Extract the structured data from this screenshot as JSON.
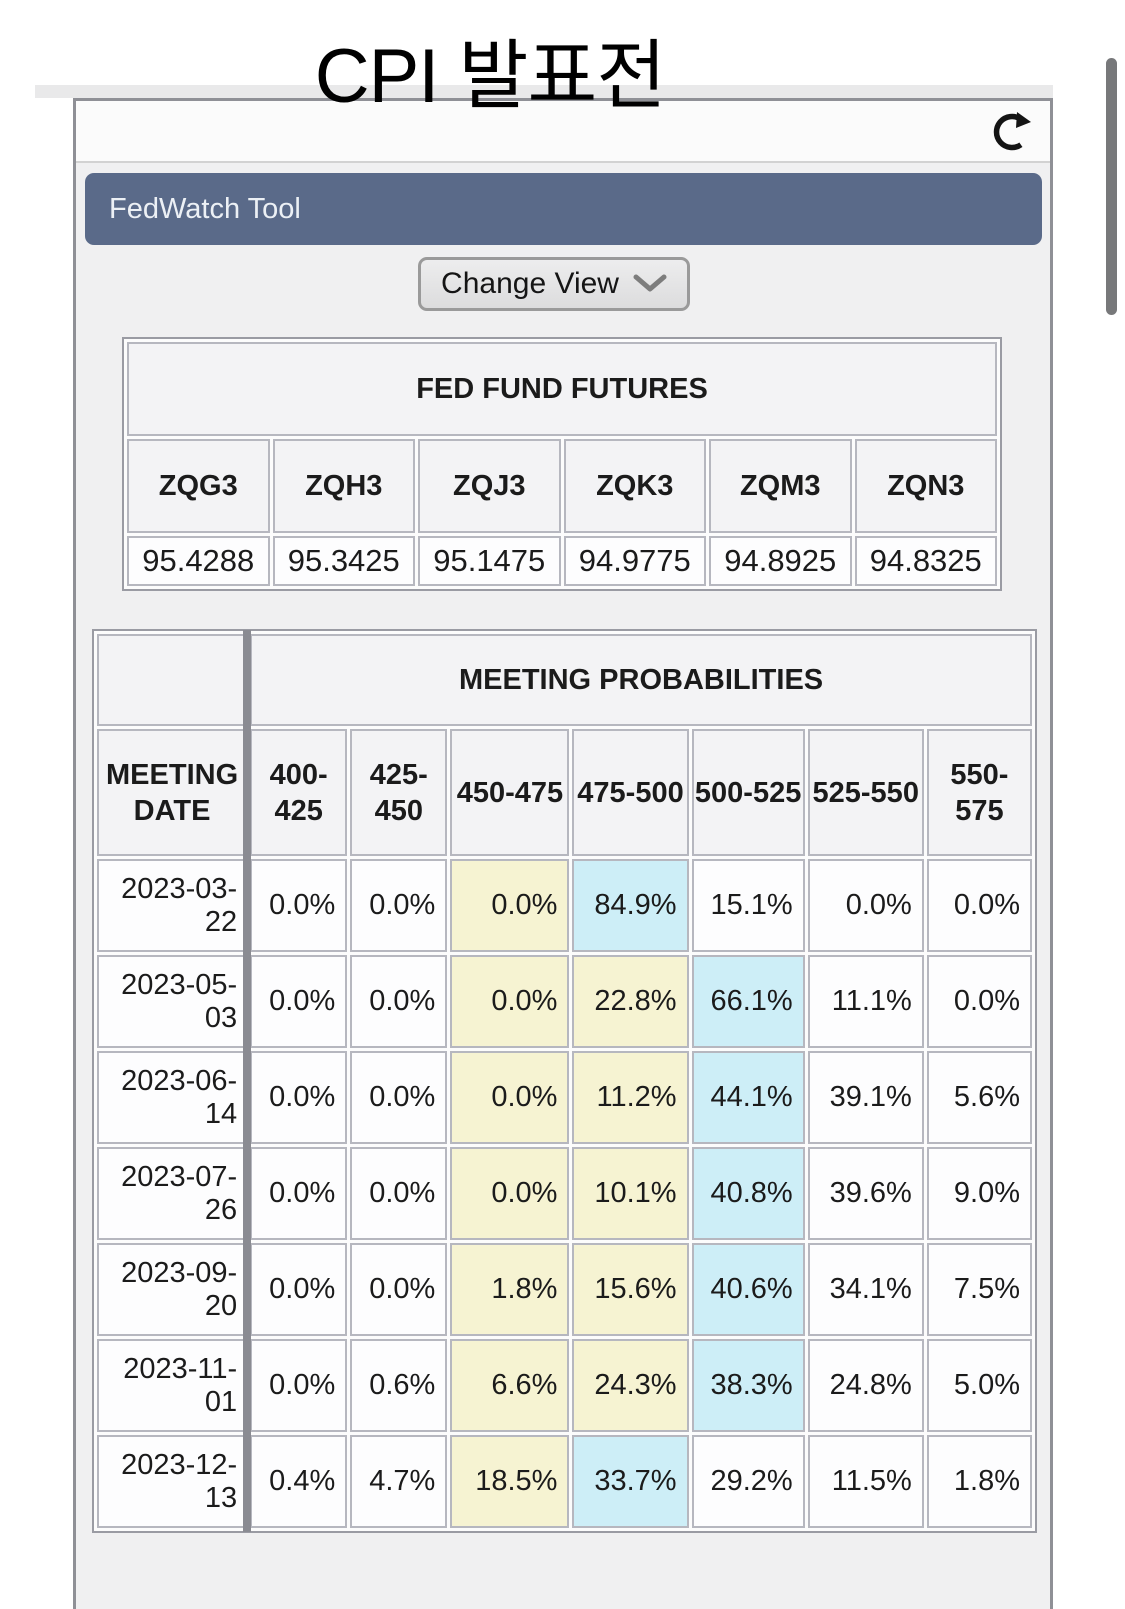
{
  "page": {
    "title": "CPI 발표전"
  },
  "widget": {
    "header_label": "FedWatch Tool",
    "change_view_label": "Change View"
  },
  "futures_table": {
    "title": "FED FUND FUTURES",
    "symbols": [
      "ZQG3",
      "ZQH3",
      "ZQJ3",
      "ZQK3",
      "ZQM3",
      "ZQN3"
    ],
    "prices": [
      "95.4288",
      "95.3425",
      "95.1475",
      "94.9775",
      "94.8925",
      "94.8325"
    ]
  },
  "probabilities_table": {
    "title": "MEETING PROBABILITIES",
    "date_header": "MEETING DATE",
    "rate_headers": [
      "400-425",
      "425-450",
      "450-475",
      "475-500",
      "500-525",
      "525-550",
      "550-575"
    ],
    "rows": [
      {
        "date": "2023-03-22",
        "values": [
          "0.0%",
          "0.0%",
          "0.0%",
          "84.9%",
          "15.1%",
          "0.0%",
          "0.0%"
        ],
        "highlights": [
          "",
          "",
          "yellow",
          "blue",
          "",
          "",
          ""
        ]
      },
      {
        "date": "2023-05-03",
        "values": [
          "0.0%",
          "0.0%",
          "0.0%",
          "22.8%",
          "66.1%",
          "11.1%",
          "0.0%"
        ],
        "highlights": [
          "",
          "",
          "yellow",
          "yellow",
          "blue",
          "",
          ""
        ]
      },
      {
        "date": "2023-06-14",
        "values": [
          "0.0%",
          "0.0%",
          "0.0%",
          "11.2%",
          "44.1%",
          "39.1%",
          "5.6%"
        ],
        "highlights": [
          "",
          "",
          "yellow",
          "yellow",
          "blue",
          "",
          ""
        ]
      },
      {
        "date": "2023-07-26",
        "values": [
          "0.0%",
          "0.0%",
          "0.0%",
          "10.1%",
          "40.8%",
          "39.6%",
          "9.0%"
        ],
        "highlights": [
          "",
          "",
          "yellow",
          "yellow",
          "blue",
          "",
          ""
        ]
      },
      {
        "date": "2023-09-20",
        "values": [
          "0.0%",
          "0.0%",
          "1.8%",
          "15.6%",
          "40.6%",
          "34.1%",
          "7.5%"
        ],
        "highlights": [
          "",
          "",
          "yellow",
          "yellow",
          "blue",
          "",
          ""
        ]
      },
      {
        "date": "2023-11-01",
        "values": [
          "0.0%",
          "0.6%",
          "6.6%",
          "24.3%",
          "38.3%",
          "24.8%",
          "5.0%"
        ],
        "highlights": [
          "",
          "",
          "yellow",
          "yellow",
          "blue",
          "",
          ""
        ]
      },
      {
        "date": "2023-12-13",
        "values": [
          "0.4%",
          "4.7%",
          "18.5%",
          "33.7%",
          "29.2%",
          "11.5%",
          "1.8%"
        ],
        "highlights": [
          "",
          "",
          "yellow",
          "blue",
          "",
          "",
          ""
        ]
      }
    ]
  },
  "colors": {
    "header_bar": "#5a6a89",
    "highlight_current_range": "#f6f3d2",
    "highlight_top_probability": "#cdeef7"
  }
}
